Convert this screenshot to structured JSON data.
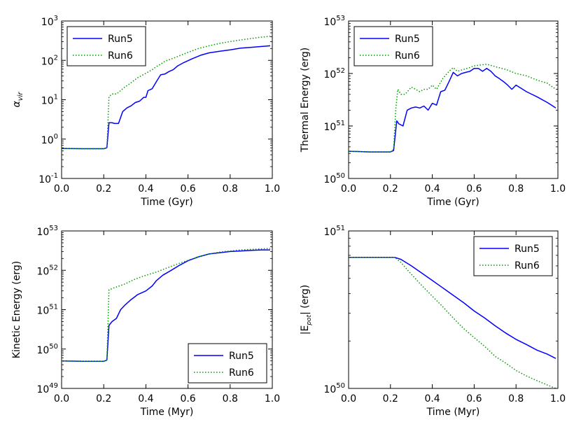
{
  "colors": {
    "run5": "#0000ff",
    "run6": "#009900",
    "axis": "#000000"
  },
  "chart_data": [
    {
      "type": "line",
      "yscale": "log",
      "xlabel": "Time (Gyr)",
      "ylabel": "αvir",
      "ylabel_main": "α",
      "ylabel_sub": "vir",
      "xlim": [
        0,
        1
      ],
      "ylim": [
        0.1,
        1000
      ],
      "xticks": [
        "0.0",
        "0.2",
        "0.4",
        "0.6",
        "0.8",
        "1.0"
      ],
      "yticks": [
        {
          "value": 0.1,
          "base": "10",
          "exp": "-1"
        },
        {
          "value": 1,
          "base": "10",
          "exp": "0"
        },
        {
          "value": 10,
          "base": "10",
          "exp": "1"
        },
        {
          "value": 100,
          "base": "10",
          "exp": "2"
        },
        {
          "value": 1000,
          "base": "10",
          "exp": "3"
        }
      ],
      "legend": {
        "position": "top-left",
        "entries": [
          "Run5",
          "Run6"
        ]
      },
      "series": [
        {
          "name": "Run5",
          "style": "solid",
          "x": [
            0,
            0.1,
            0.2,
            0.215,
            0.225,
            0.24,
            0.25,
            0.27,
            0.29,
            0.31,
            0.33,
            0.35,
            0.37,
            0.39,
            0.4,
            0.41,
            0.43,
            0.45,
            0.47,
            0.49,
            0.51,
            0.53,
            0.55,
            0.58,
            0.62,
            0.66,
            0.7,
            0.75,
            0.8,
            0.85,
            0.9,
            0.95,
            0.99
          ],
          "y": [
            0.58,
            0.57,
            0.57,
            0.6,
            2.6,
            2.6,
            2.5,
            2.5,
            5.0,
            6.2,
            7.0,
            8.5,
            9.2,
            11.5,
            11.5,
            17.0,
            19.0,
            29.0,
            43.0,
            45.0,
            52.0,
            58.0,
            72.0,
            88.0,
            110.0,
            135.0,
            155.0,
            170.0,
            185.0,
            205.0,
            215.0,
            225.0,
            235.0
          ]
        },
        {
          "name": "Run6",
          "style": "dotted",
          "x": [
            0,
            0.1,
            0.2,
            0.215,
            0.225,
            0.24,
            0.26,
            0.28,
            0.3,
            0.33,
            0.36,
            0.4,
            0.43,
            0.45,
            0.47,
            0.49,
            0.52,
            0.55,
            0.6,
            0.65,
            0.7,
            0.75,
            0.8,
            0.85,
            0.9,
            0.95,
            0.99
          ],
          "y": [
            0.58,
            0.57,
            0.57,
            0.6,
            12.0,
            14.0,
            14.0,
            17.0,
            21.0,
            27.0,
            36.0,
            47.0,
            58.0,
            70.0,
            80.0,
            95.0,
            108.0,
            125.0,
            160.0,
            200.0,
            235.0,
            270.0,
            300.0,
            330.0,
            360.0,
            390.0,
            410.0
          ]
        }
      ]
    },
    {
      "type": "line",
      "yscale": "log",
      "xlabel": "Time (Gyr)",
      "ylabel": "Thermal Energy (erg)",
      "xlim": [
        0,
        1
      ],
      "ylim": [
        1e+50,
        1e+53
      ],
      "xticks": [
        "0.0",
        "0.2",
        "0.4",
        "0.6",
        "0.8",
        "1.0"
      ],
      "yticks": [
        {
          "value": 1e+50,
          "base": "10",
          "exp": "50"
        },
        {
          "value": 1e+51,
          "base": "10",
          "exp": "51"
        },
        {
          "value": 1e+52,
          "base": "10",
          "exp": "52"
        },
        {
          "value": 1e+53,
          "base": "10",
          "exp": "53"
        }
      ],
      "legend": {
        "position": "top-left",
        "entries": [
          "Run5",
          "Run6"
        ]
      },
      "series": [
        {
          "name": "Run5",
          "style": "solid",
          "x": [
            0,
            0.1,
            0.2,
            0.215,
            0.23,
            0.24,
            0.26,
            0.28,
            0.3,
            0.32,
            0.34,
            0.36,
            0.38,
            0.4,
            0.42,
            0.44,
            0.46,
            0.48,
            0.5,
            0.52,
            0.54,
            0.56,
            0.58,
            0.6,
            0.62,
            0.64,
            0.66,
            0.68,
            0.7,
            0.72,
            0.74,
            0.76,
            0.78,
            0.8,
            0.85,
            0.9,
            0.95,
            0.99
          ],
          "y": [
            3.3e+50,
            3.2e+50,
            3.2e+50,
            3.4e+50,
            1.25e+51,
            1.1e+51,
            1e+51,
            2e+51,
            2.2e+51,
            2.3e+51,
            2.2e+51,
            2.4e+51,
            2e+51,
            2.7e+51,
            2.5e+51,
            4.5e+51,
            4.8e+51,
            7e+51,
            1.05e+52,
            9e+51,
            1e+52,
            1.05e+52,
            1.1e+52,
            1.25e+52,
            1.25e+52,
            1.1e+52,
            1.25e+52,
            1.1e+52,
            9e+51,
            8e+51,
            7e+51,
            6e+51,
            5e+51,
            6e+51,
            4.5e+51,
            3.6e+51,
            2.8e+51,
            2.2e+51
          ]
        },
        {
          "name": "Run6",
          "style": "dotted",
          "x": [
            0,
            0.1,
            0.2,
            0.215,
            0.225,
            0.235,
            0.25,
            0.27,
            0.3,
            0.32,
            0.34,
            0.36,
            0.38,
            0.4,
            0.42,
            0.45,
            0.48,
            0.5,
            0.52,
            0.55,
            0.58,
            0.6,
            0.63,
            0.66,
            0.7,
            0.75,
            0.8,
            0.85,
            0.9,
            0.95,
            0.99
          ],
          "y": [
            3.3e+50,
            3.2e+50,
            3.2e+50,
            3.6e+50,
            2e+51,
            5e+51,
            4e+51,
            4e+51,
            5.5e+51,
            5e+51,
            4.5e+51,
            5e+51,
            5e+51,
            6e+51,
            5e+51,
            8e+51,
            1.1e+52,
            1.3e+52,
            1.1e+52,
            1.2e+52,
            1.3e+52,
            1.4e+52,
            1.45e+52,
            1.5e+52,
            1.35e+52,
            1.2e+52,
            1e+52,
            9e+51,
            7.5e+51,
            6.5e+51,
            5e+51
          ]
        }
      ]
    },
    {
      "type": "line",
      "yscale": "log",
      "xlabel": "Time (Myr)",
      "ylabel": "Kinetic Energy (erg)",
      "xlim": [
        0,
        1
      ],
      "ylim": [
        1e+49,
        1e+53
      ],
      "xticks": [
        "0.0",
        "0.2",
        "0.4",
        "0.6",
        "0.8",
        "1.0"
      ],
      "yticks": [
        {
          "value": 1e+49,
          "base": "10",
          "exp": "49"
        },
        {
          "value": 1e+50,
          "base": "10",
          "exp": "50"
        },
        {
          "value": 1e+51,
          "base": "10",
          "exp": "51"
        },
        {
          "value": 1e+52,
          "base": "10",
          "exp": "52"
        },
        {
          "value": 1e+53,
          "base": "10",
          "exp": "53"
        }
      ],
      "legend": {
        "position": "bottom-right",
        "entries": [
          "Run5",
          "Run6"
        ]
      },
      "series": [
        {
          "name": "Run5",
          "style": "solid",
          "x": [
            0,
            0.1,
            0.2,
            0.215,
            0.225,
            0.24,
            0.26,
            0.28,
            0.3,
            0.33,
            0.36,
            0.4,
            0.43,
            0.45,
            0.48,
            0.52,
            0.56,
            0.6,
            0.65,
            0.7,
            0.75,
            0.8,
            0.85,
            0.9,
            0.95,
            0.99
          ],
          "y": [
            5e+49,
            4.9e+49,
            4.9e+49,
            5.2e+49,
            4e+50,
            5e+50,
            6e+50,
            1e+51,
            1.3e+51,
            1.8e+51,
            2.4e+51,
            3e+51,
            4e+51,
            5.5e+51,
            7.5e+51,
            1e+52,
            1.35e+52,
            1.75e+52,
            2.2e+52,
            2.6e+52,
            2.8e+52,
            3e+52,
            3.1e+52,
            3.2e+52,
            3.3e+52,
            3.3e+52
          ]
        },
        {
          "name": "Run6",
          "style": "dotted",
          "x": [
            0,
            0.1,
            0.2,
            0.215,
            0.225,
            0.25,
            0.3,
            0.35,
            0.4,
            0.45,
            0.5,
            0.55,
            0.6,
            0.65,
            0.7,
            0.75,
            0.8,
            0.85,
            0.9,
            0.95,
            0.99
          ],
          "y": [
            5e+49,
            4.9e+49,
            4.9e+49,
            5.3e+49,
            3.2e+51,
            3.6e+51,
            4.5e+51,
            6e+51,
            7.5e+51,
            9e+51,
            1.15e+52,
            1.45e+52,
            1.8e+52,
            2.2e+52,
            2.6e+52,
            2.9e+52,
            3.1e+52,
            3.3e+52,
            3.4e+52,
            3.5e+52,
            3.6e+52
          ]
        }
      ]
    },
    {
      "type": "line",
      "yscale": "log",
      "xlabel": "Time (Myr)",
      "ylabel": "|Epot| (erg)",
      "ylabel_pre": "|E",
      "ylabel_sub": "pot",
      "ylabel_post": "| (erg)",
      "xlim": [
        0,
        1
      ],
      "ylim": [
        1e+50,
        1e+51
      ],
      "xticks": [
        "0.0",
        "0.2",
        "0.4",
        "0.6",
        "0.8",
        "1.0"
      ],
      "yticks": [
        {
          "value": 1e+50,
          "base": "10",
          "exp": "50"
        },
        {
          "value": 1e+51,
          "base": "10",
          "exp": "51"
        }
      ],
      "legend": {
        "position": "top-right",
        "entries": [
          "Run5",
          "Run6"
        ]
      },
      "series": [
        {
          "name": "Run5",
          "style": "solid",
          "x": [
            0,
            0.1,
            0.2,
            0.22,
            0.25,
            0.3,
            0.35,
            0.4,
            0.45,
            0.5,
            0.55,
            0.6,
            0.65,
            0.7,
            0.75,
            0.8,
            0.85,
            0.9,
            0.95,
            0.99
          ],
          "y": [
            6.8e+50,
            6.8e+50,
            6.8e+50,
            6.8e+50,
            6.6e+50,
            6e+50,
            5.4e+50,
            4.85e+50,
            4.35e+50,
            3.9e+50,
            3.5e+50,
            3.1e+50,
            2.8e+50,
            2.5e+50,
            2.25e+50,
            2.05e+50,
            1.9e+50,
            1.75e+50,
            1.65e+50,
            1.55e+50
          ]
        },
        {
          "name": "Run6",
          "style": "dotted",
          "x": [
            0,
            0.1,
            0.2,
            0.22,
            0.25,
            0.3,
            0.35,
            0.4,
            0.45,
            0.5,
            0.55,
            0.6,
            0.65,
            0.7,
            0.75,
            0.8,
            0.85,
            0.9,
            0.95,
            0.99
          ],
          "y": [
            6.8e+50,
            6.8e+50,
            6.8e+50,
            6.8e+50,
            6.3e+50,
            5.3e+50,
            4.5e+50,
            3.85e+50,
            3.3e+50,
            2.8e+50,
            2.4e+50,
            2.1e+50,
            1.85e+50,
            1.6e+50,
            1.45e+50,
            1.3e+50,
            1.2e+50,
            1.12e+50,
            1.05e+50,
            1e+50
          ]
        }
      ]
    }
  ]
}
